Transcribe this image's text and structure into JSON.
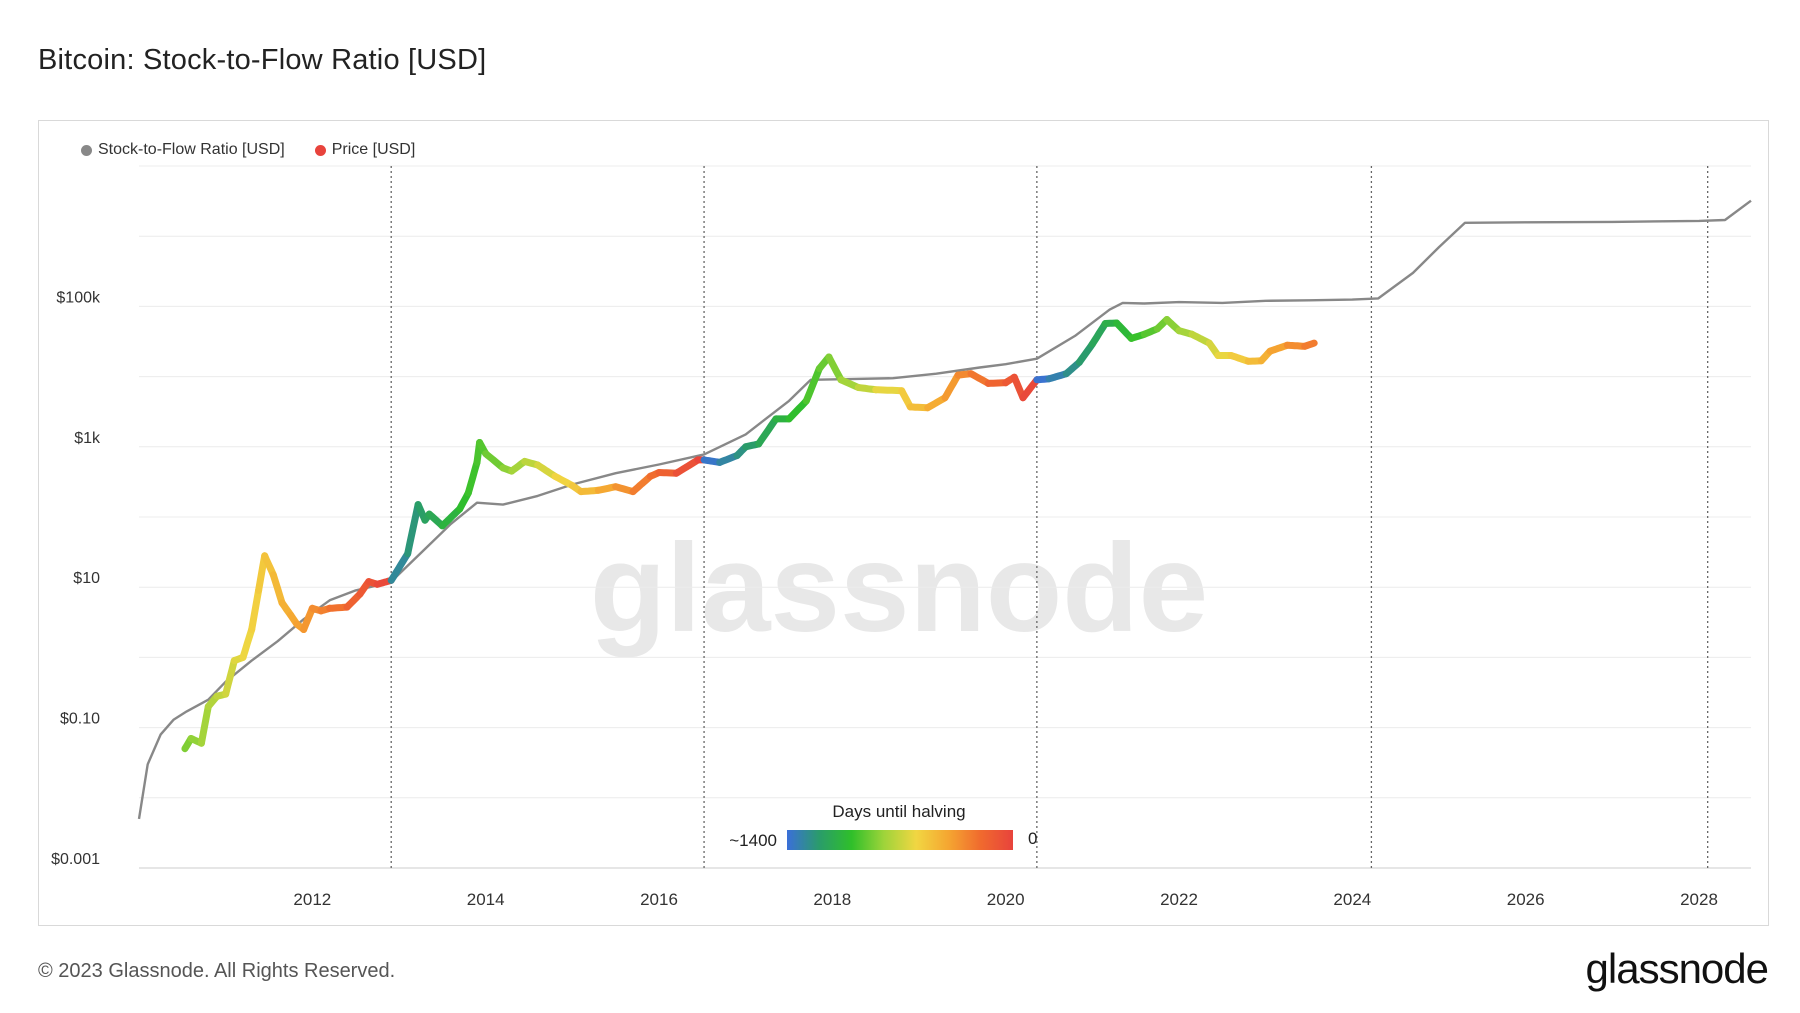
{
  "page": {
    "title": "Bitcoin: Stock-to-Flow Ratio [USD]",
    "footer": "© 2023 Glassnode. All Rights Reserved.",
    "brand": "glassnode",
    "watermark": "glassnode"
  },
  "legend": {
    "items": [
      {
        "label": "Stock-to-Flow Ratio [USD]",
        "color": "#888888"
      },
      {
        "label": "Price [USD]",
        "color": "#e8433c"
      }
    ]
  },
  "colorbar": {
    "title": "Days until halving",
    "min_label": "~1400",
    "max_label": "0",
    "colors": [
      "#3b6fd9",
      "#2a9c6a",
      "#2fbf2a",
      "#9ed43a",
      "#f1d642",
      "#f5a631",
      "#f06a2e",
      "#e8433c"
    ]
  },
  "chart_data": {
    "type": "line",
    "title": "Bitcoin: Stock-to-Flow Ratio [USD]",
    "y_scale": "log",
    "ylim": [
      0.001,
      10000000
    ],
    "xlim": [
      2010.0,
      2028.6
    ],
    "y_tick_labels": [
      {
        "value": 0.001,
        "label": "$0.001"
      },
      {
        "value": 0.1,
        "label": "$0.10"
      },
      {
        "value": 10,
        "label": "$10"
      },
      {
        "value": 1000,
        "label": "$1k"
      },
      {
        "value": 100000,
        "label": "$100k"
      }
    ],
    "y_gridlines": [
      0.001,
      0.01,
      0.1,
      1,
      10,
      100,
      1000,
      10000,
      100000,
      1000000,
      10000000
    ],
    "x_tick_labels": [
      "2012",
      "2014",
      "2016",
      "2018",
      "2020",
      "2022",
      "2024",
      "2026",
      "2028"
    ],
    "x_tick_values": [
      2012,
      2014,
      2016,
      2018,
      2020,
      2022,
      2024,
      2026,
      2028
    ],
    "halving_dates": [
      2012.91,
      2016.52,
      2020.36,
      2024.22,
      2028.1
    ],
    "series": [
      {
        "name": "Stock-to-Flow Ratio [USD]",
        "color": "#888888",
        "x": [
          2010.0,
          2010.1,
          2010.25,
          2010.4,
          2010.55,
          2010.8,
          2011.0,
          2011.3,
          2011.6,
          2011.9,
          2012.2,
          2012.5,
          2012.8,
          2012.91,
          2013.3,
          2013.6,
          2013.9,
          2014.2,
          2014.6,
          2015.0,
          2015.5,
          2016.0,
          2016.52,
          2017.0,
          2017.5,
          2017.75,
          2018.2,
          2018.7,
          2019.2,
          2019.7,
          2020.0,
          2020.36,
          2020.8,
          2021.2,
          2021.35,
          2021.6,
          2022.0,
          2022.5,
          2023.0,
          2023.5,
          2024.0,
          2024.3,
          2024.7,
          2025.0,
          2025.3,
          2026.0,
          2027.0,
          2028.0,
          2028.3,
          2028.6
        ],
        "y": [
          0.005,
          0.03,
          0.08,
          0.13,
          0.17,
          0.25,
          0.45,
          0.9,
          1.7,
          3.5,
          6.5,
          9,
          11,
          12,
          35,
          80,
          160,
          150,
          200,
          290,
          420,
          560,
          780,
          1500,
          4500,
          9000,
          9200,
          9500,
          11000,
          13500,
          15000,
          18000,
          38000,
          90000,
          112000,
          110000,
          115000,
          112000,
          120000,
          122000,
          125000,
          130000,
          300000,
          700000,
          1550000,
          1580000,
          1600000,
          1650000,
          1700000,
          3200000
        ]
      },
      {
        "name": "Price [USD]",
        "x": [
          2010.53,
          2010.6,
          2010.72,
          2010.8,
          2010.9,
          2011.0,
          2011.1,
          2011.2,
          2011.3,
          2011.38,
          2011.45,
          2011.55,
          2011.65,
          2011.75,
          2011.82,
          2011.9,
          2012.0,
          2012.1,
          2012.2,
          2012.4,
          2012.55,
          2012.65,
          2012.75,
          2012.91,
          2013.1,
          2013.22,
          2013.3,
          2013.35,
          2013.5,
          2013.7,
          2013.8,
          2013.9,
          2013.93,
          2014.0,
          2014.2,
          2014.3,
          2014.45,
          2014.6,
          2014.8,
          2015.0,
          2015.1,
          2015.3,
          2015.5,
          2015.7,
          2015.9,
          2016.0,
          2016.2,
          2016.45,
          2016.52,
          2016.7,
          2016.9,
          2017.0,
          2017.15,
          2017.35,
          2017.5,
          2017.7,
          2017.85,
          2017.96,
          2018.1,
          2018.3,
          2018.5,
          2018.8,
          2018.9,
          2019.1,
          2019.3,
          2019.45,
          2019.6,
          2019.8,
          2020.0,
          2020.1,
          2020.2,
          2020.36,
          2020.5,
          2020.7,
          2020.85,
          2021.0,
          2021.15,
          2021.28,
          2021.45,
          2021.6,
          2021.75,
          2021.86,
          2022.0,
          2022.15,
          2022.35,
          2022.45,
          2022.6,
          2022.8,
          2022.95,
          2023.05,
          2023.25,
          2023.45,
          2023.56
        ],
        "y": [
          0.05,
          0.07,
          0.06,
          0.2,
          0.28,
          0.3,
          0.9,
          1,
          2.5,
          9,
          28,
          15,
          6,
          4,
          3,
          2.5,
          5,
          4.6,
          5,
          5.2,
          8,
          12,
          11,
          12.5,
          30,
          150,
          90,
          110,
          75,
          130,
          220,
          600,
          1150,
          800,
          500,
          450,
          620,
          550,
          380,
          280,
          230,
          240,
          270,
          230,
          380,
          430,
          420,
          650,
          650,
          600,
          750,
          1000,
          1100,
          2500,
          2500,
          4500,
          13000,
          19000,
          9000,
          7000,
          6500,
          6300,
          3700,
          3600,
          5000,
          10500,
          11000,
          8000,
          8200,
          9800,
          5000,
          9000,
          9300,
          11000,
          16000,
          29000,
          57000,
          58000,
          35000,
          40000,
          48000,
          65000,
          45000,
          40000,
          30000,
          20000,
          20000,
          16500,
          16800,
          23000,
          28000,
          27000,
          30000
        ],
        "color_scale": "days until halving"
      }
    ]
  }
}
